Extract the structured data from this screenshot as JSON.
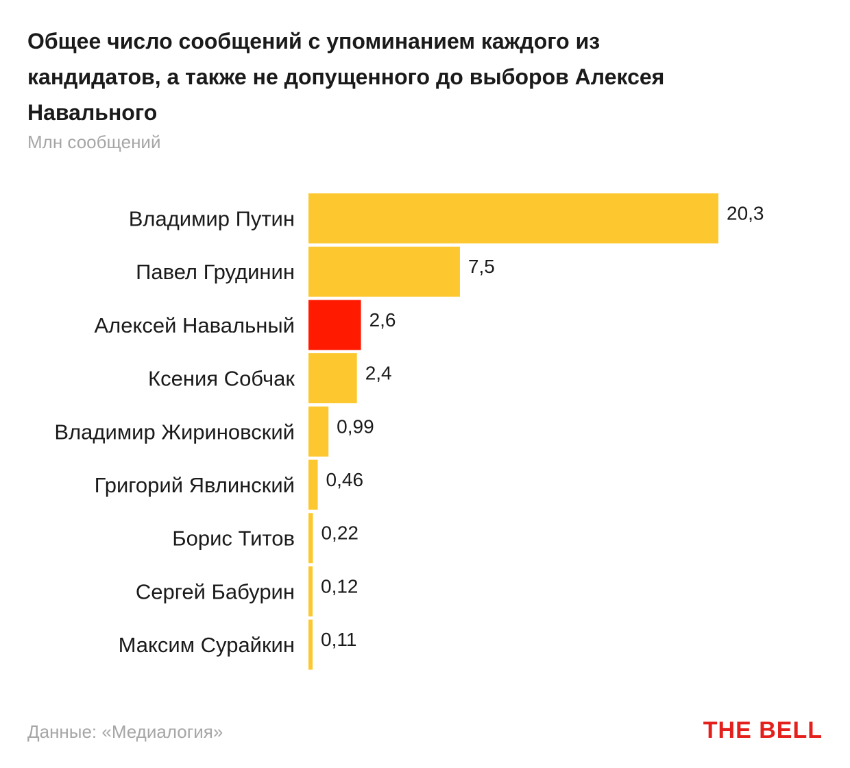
{
  "chart_data": {
    "type": "bar",
    "orientation": "horizontal",
    "title": "Общее число сообщений с упоминанием каждого из кандидатов, а также не допущенного до выборов Алексея Навального",
    "subtitle": "Млн сообщений",
    "categories": [
      "Владимир Путин",
      "Павел Грудинин",
      "Алексей Навальный",
      "Ксения Собчак",
      "Владимир Жириновский",
      "Григорий Явлинский",
      "Борис Титов",
      "Сергей Бабурин",
      "Максим Сурайкин"
    ],
    "values": [
      20.3,
      7.5,
      2.6,
      2.4,
      0.99,
      0.46,
      0.22,
      0.12,
      0.11
    ],
    "value_labels": [
      "20,3",
      "7,5",
      "2,6",
      "2,4",
      "0,99",
      "0,46",
      "0,22",
      "0,12",
      "0,11"
    ],
    "highlight_category": "Алексей Навальный",
    "colors": {
      "bar": "#fdc82f",
      "highlight": "#ff1a00"
    },
    "xlim": [
      0,
      20.3
    ],
    "grid": false,
    "legend": "none"
  },
  "footer": {
    "source": "Данные: «Медиалогия»",
    "logo": "THE BELL"
  }
}
